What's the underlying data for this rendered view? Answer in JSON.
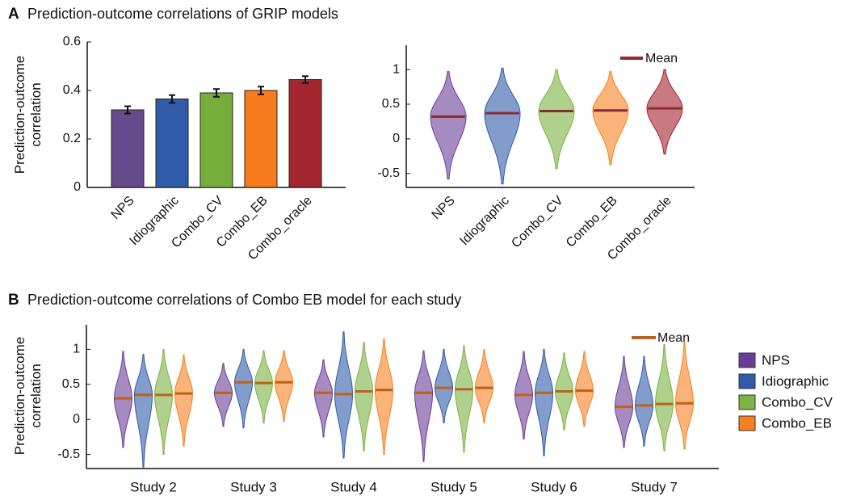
{
  "chart_data": [
    {
      "type": "bar",
      "panel": "A",
      "title": "Prediction-outcome correlations of GRIP models",
      "y_label": "Prediction-outcome correlation",
      "categories": [
        "NPS",
        "Idiographic",
        "Combo_CV",
        "Combo_EB",
        "Combo_oracle"
      ],
      "values": [
        0.32,
        0.365,
        0.39,
        0.4,
        0.445
      ],
      "errors": [
        0.015,
        0.016,
        0.016,
        0.016,
        0.014
      ],
      "colors": [
        "#654a8c",
        "#2f5ba8",
        "#76ad3a",
        "#f77b1d",
        "#a3252e"
      ],
      "ylim": [
        0,
        0.6
      ],
      "yticks": [
        0,
        0.2,
        0.4,
        0.6
      ]
    },
    {
      "type": "violin",
      "legend": "Mean",
      "mean_color": "#8a2b38",
      "categories": [
        "NPS",
        "Idiographic",
        "Combo_CV",
        "Combo_EB",
        "Combo_oracle"
      ],
      "colors": [
        "#6a3d98",
        "#2f5ba8",
        "#7cb342",
        "#f7801e",
        "#a3212b"
      ],
      "values": [
        0.32,
        0.37,
        0.4,
        0.41,
        0.44
      ],
      "min": [
        -0.58,
        -0.65,
        -0.43,
        -0.37,
        -0.22
      ],
      "max": [
        0.97,
        1.02,
        1.0,
        0.97,
        1.0
      ],
      "ylim": [
        -0.7,
        1.35
      ],
      "yticks": [
        -0.5,
        0,
        0.5,
        1
      ]
    },
    {
      "type": "grouped_violin",
      "panel": "B",
      "title": "Prediction-outcome correlations of Combo EB model for each study",
      "y_label": "Prediction-outcome correlation",
      "legend": "Mean",
      "mean_color": "#c0601a",
      "categories": [
        "Study 2",
        "Study 3",
        "Study 4",
        "Study 5",
        "Study 6",
        "Study 7"
      ],
      "series": [
        {
          "name": "NPS",
          "color": "#6a3d98",
          "values": [
            0.3,
            0.38,
            0.38,
            0.38,
            0.35,
            0.18
          ],
          "min": [
            -0.4,
            -0.1,
            -0.25,
            -0.6,
            -0.28,
            -0.4
          ],
          "max": [
            0.97,
            0.8,
            0.85,
            0.98,
            0.97,
            0.9
          ]
        },
        {
          "name": "Idiographic",
          "color": "#2f5ba8",
          "values": [
            0.35,
            0.53,
            0.36,
            0.45,
            0.38,
            0.2
          ],
          "min": [
            -0.68,
            -0.12,
            -0.55,
            -0.05,
            -0.52,
            -0.38
          ],
          "max": [
            0.93,
            1.0,
            1.25,
            1.0,
            1.0,
            0.9
          ]
        },
        {
          "name": "Combo_CV",
          "color": "#7cb342",
          "values": [
            0.35,
            0.52,
            0.4,
            0.43,
            0.4,
            0.22
          ],
          "min": [
            -0.5,
            -0.05,
            -0.45,
            -0.47,
            -0.15,
            -0.45
          ],
          "max": [
            1.0,
            0.98,
            1.1,
            1.05,
            0.95,
            1.07
          ]
        },
        {
          "name": "Combo_EB",
          "color": "#f7801e",
          "values": [
            0.37,
            0.53,
            0.42,
            0.45,
            0.41,
            0.23
          ],
          "min": [
            -0.38,
            -0.03,
            -0.5,
            -0.05,
            -0.1,
            -0.42
          ],
          "max": [
            0.92,
            0.98,
            1.15,
            1.0,
            0.97,
            1.1
          ]
        }
      ],
      "ylim": [
        -0.7,
        1.35
      ],
      "yticks": [
        -0.5,
        0,
        0.5,
        1
      ]
    }
  ]
}
